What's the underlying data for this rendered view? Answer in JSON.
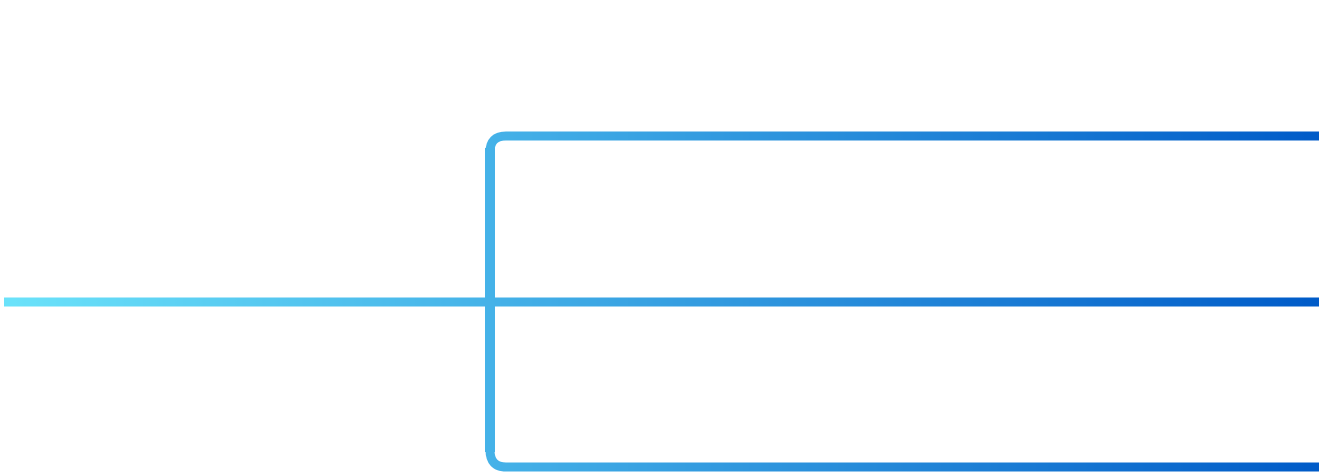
{
  "diagram": {
    "type": "branching-connector",
    "branch_count": 3,
    "branches": [
      "top",
      "middle",
      "bottom"
    ],
    "colors": {
      "background": "#ffffff",
      "gradient_start": "#6be3fa",
      "gradient_mid": "#45b2e8",
      "gradient_end": "#005bc8"
    }
  }
}
